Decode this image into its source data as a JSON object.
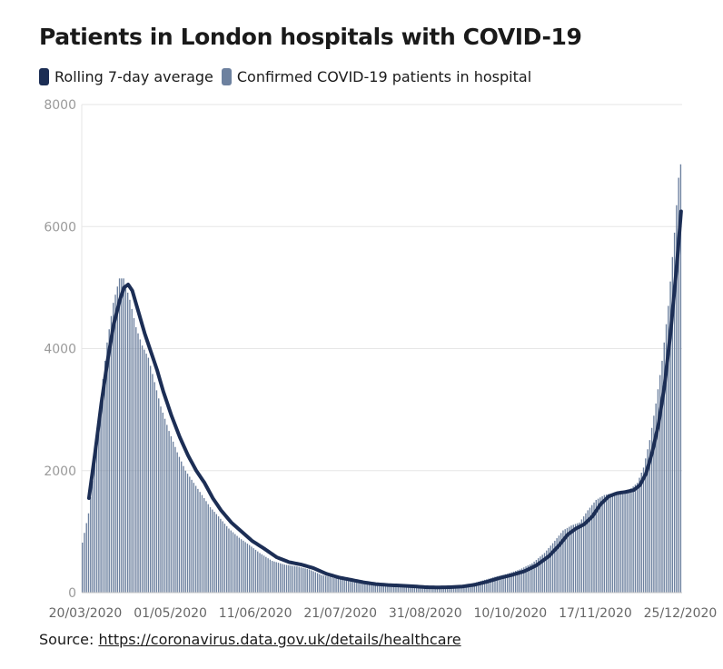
{
  "title": "Patients in London hospitals with COVID-19",
  "source": {
    "prefix": "Source: ",
    "link_text": "https://coronavirus.data.gov.uk/details/healthcare"
  },
  "colors": {
    "bar": "#6d819f",
    "line": "#1c2e55",
    "grid": "#e6e6e6",
    "axis": "#c8c8c8"
  },
  "chart_data": {
    "type": "bar",
    "title": "Patients in London hospitals with COVID-19",
    "xlabel": "",
    "ylabel": "",
    "ylim": [
      0,
      8000
    ],
    "yticks": [
      0,
      2000,
      4000,
      6000,
      8000
    ],
    "grid": true,
    "legend_position": "top-left",
    "x_start": "2020-03-20",
    "x_end": "2021-01-04",
    "xtick_labels": [
      "20/03/2020",
      "01/05/2020",
      "11/06/2020",
      "21/07/2020",
      "31/08/2020",
      "10/10/2020",
      "17/11/2020",
      "25/12/2020"
    ],
    "series": [
      {
        "name": "Rolling 7-day average",
        "type": "line",
        "points": [
          [
            "2020-03-23",
            1550
          ],
          [
            "2020-03-26",
            2300
          ],
          [
            "2020-03-29",
            3100
          ],
          [
            "2020-04-01",
            3800
          ],
          [
            "2020-04-04",
            4400
          ],
          [
            "2020-04-07",
            4800
          ],
          [
            "2020-04-09",
            5000
          ],
          [
            "2020-04-11",
            5050
          ],
          [
            "2020-04-13",
            4950
          ],
          [
            "2020-04-16",
            4600
          ],
          [
            "2020-04-19",
            4250
          ],
          [
            "2020-04-22",
            3950
          ],
          [
            "2020-04-25",
            3650
          ],
          [
            "2020-04-28",
            3300
          ],
          [
            "2020-05-02",
            2900
          ],
          [
            "2020-05-06",
            2550
          ],
          [
            "2020-05-10",
            2250
          ],
          [
            "2020-05-14",
            2000
          ],
          [
            "2020-05-18",
            1800
          ],
          [
            "2020-05-22",
            1550
          ],
          [
            "2020-05-26",
            1350
          ],
          [
            "2020-05-31",
            1150
          ],
          [
            "2020-06-05",
            1000
          ],
          [
            "2020-06-10",
            850
          ],
          [
            "2020-06-16",
            720
          ],
          [
            "2020-06-22",
            580
          ],
          [
            "2020-06-28",
            500
          ],
          [
            "2020-07-04",
            460
          ],
          [
            "2020-07-10",
            400
          ],
          [
            "2020-07-16",
            310
          ],
          [
            "2020-07-22",
            250
          ],
          [
            "2020-07-28",
            210
          ],
          [
            "2020-08-03",
            170
          ],
          [
            "2020-08-09",
            140
          ],
          [
            "2020-08-15",
            125
          ],
          [
            "2020-08-21",
            115
          ],
          [
            "2020-08-27",
            105
          ],
          [
            "2020-09-02",
            90
          ],
          [
            "2020-09-08",
            85
          ],
          [
            "2020-09-14",
            90
          ],
          [
            "2020-09-20",
            100
          ],
          [
            "2020-09-26",
            130
          ],
          [
            "2020-10-02",
            180
          ],
          [
            "2020-10-08",
            240
          ],
          [
            "2020-10-14",
            290
          ],
          [
            "2020-10-20",
            350
          ],
          [
            "2020-10-26",
            450
          ],
          [
            "2020-11-01",
            600
          ],
          [
            "2020-11-06",
            780
          ],
          [
            "2020-11-10",
            950
          ],
          [
            "2020-11-14",
            1050
          ],
          [
            "2020-11-18",
            1120
          ],
          [
            "2020-11-22",
            1250
          ],
          [
            "2020-11-26",
            1450
          ],
          [
            "2020-11-30",
            1580
          ],
          [
            "2020-12-04",
            1630
          ],
          [
            "2020-12-08",
            1650
          ],
          [
            "2020-12-12",
            1680
          ],
          [
            "2020-12-15",
            1760
          ],
          [
            "2020-12-18",
            1950
          ],
          [
            "2020-12-21",
            2300
          ],
          [
            "2020-12-24",
            2750
          ],
          [
            "2020-12-27",
            3400
          ],
          [
            "2020-12-30",
            4300
          ],
          [
            "2021-01-02",
            5400
          ],
          [
            "2021-01-04",
            6250
          ]
        ]
      },
      {
        "name": "Confirmed COVID-19 patients in hospital",
        "type": "bar",
        "points": [
          [
            "2020-03-20",
            820
          ],
          [
            "2020-03-23",
            1300
          ],
          [
            "2020-03-26",
            2100
          ],
          [
            "2020-03-29",
            3200
          ],
          [
            "2020-04-01",
            4100
          ],
          [
            "2020-04-04",
            4750
          ],
          [
            "2020-04-07",
            5150
          ],
          [
            "2020-04-09",
            5150
          ],
          [
            "2020-04-12",
            4800
          ],
          [
            "2020-04-15",
            4350
          ],
          [
            "2020-04-18",
            4050
          ],
          [
            "2020-04-21",
            3850
          ],
          [
            "2020-04-24",
            3450
          ],
          [
            "2020-04-27",
            3050
          ],
          [
            "2020-05-01",
            2650
          ],
          [
            "2020-05-05",
            2300
          ],
          [
            "2020-05-09",
            2000
          ],
          [
            "2020-05-13",
            1800
          ],
          [
            "2020-05-17",
            1600
          ],
          [
            "2020-05-21",
            1400
          ],
          [
            "2020-05-25",
            1250
          ],
          [
            "2020-05-30",
            1050
          ],
          [
            "2020-06-04",
            900
          ],
          [
            "2020-06-09",
            780
          ],
          [
            "2020-06-14",
            650
          ],
          [
            "2020-06-20",
            520
          ],
          [
            "2020-06-26",
            460
          ],
          [
            "2020-07-02",
            430
          ],
          [
            "2020-07-08",
            380
          ],
          [
            "2020-07-14",
            290
          ],
          [
            "2020-07-20",
            240
          ],
          [
            "2020-07-26",
            200
          ],
          [
            "2020-08-01",
            160
          ],
          [
            "2020-08-07",
            135
          ],
          [
            "2020-08-13",
            120
          ],
          [
            "2020-08-19",
            110
          ],
          [
            "2020-08-25",
            100
          ],
          [
            "2020-08-31",
            90
          ],
          [
            "2020-09-06",
            85
          ],
          [
            "2020-09-12",
            90
          ],
          [
            "2020-09-18",
            110
          ],
          [
            "2020-09-24",
            140
          ],
          [
            "2020-09-30",
            200
          ],
          [
            "2020-10-06",
            260
          ],
          [
            "2020-10-12",
            310
          ],
          [
            "2020-10-18",
            380
          ],
          [
            "2020-10-24",
            480
          ],
          [
            "2020-10-30",
            650
          ],
          [
            "2020-11-04",
            850
          ],
          [
            "2020-11-08",
            1020
          ],
          [
            "2020-11-12",
            1100
          ],
          [
            "2020-11-16",
            1150
          ],
          [
            "2020-11-20",
            1350
          ],
          [
            "2020-11-24",
            1520
          ],
          [
            "2020-11-28",
            1600
          ],
          [
            "2020-12-02",
            1630
          ],
          [
            "2020-12-06",
            1650
          ],
          [
            "2020-12-10",
            1680
          ],
          [
            "2020-12-14",
            1800
          ],
          [
            "2020-12-17",
            2050
          ],
          [
            "2020-12-20",
            2500
          ],
          [
            "2020-12-23",
            3100
          ],
          [
            "2020-12-26",
            3800
          ],
          [
            "2020-12-29",
            4700
          ],
          [
            "2021-01-01",
            5900
          ],
          [
            "2021-01-03",
            6800
          ],
          [
            "2021-01-04",
            7020
          ]
        ]
      }
    ]
  }
}
